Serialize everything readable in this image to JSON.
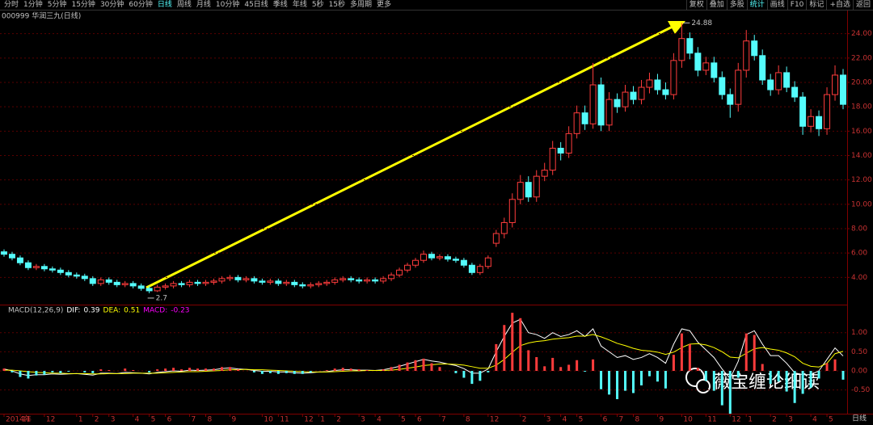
{
  "toolbar": {
    "left": [
      {
        "label": "分时"
      },
      {
        "label": "1分钟"
      },
      {
        "label": "5分钟"
      },
      {
        "label": "15分钟"
      },
      {
        "label": "30分钟"
      },
      {
        "label": "60分钟"
      },
      {
        "label": "日线",
        "active": true
      },
      {
        "label": "周线"
      },
      {
        "label": "月线"
      },
      {
        "label": "10分钟"
      },
      {
        "label": "45日线"
      },
      {
        "label": "季线"
      },
      {
        "label": "年线"
      },
      {
        "label": "5秒"
      },
      {
        "label": "15秒"
      },
      {
        "label": "多周期"
      },
      {
        "label": "更多"
      }
    ],
    "right": [
      {
        "label": "复权"
      },
      {
        "label": "叠加"
      },
      {
        "label": "多股"
      },
      {
        "label": "统计",
        "active": true
      },
      {
        "label": "画线"
      },
      {
        "label": "F10"
      },
      {
        "label": "标记"
      },
      {
        "label": "+自选"
      },
      {
        "label": "返回"
      }
    ]
  },
  "chart_data": {
    "type": "candlestick",
    "title": "000999 华润三九(日线)",
    "period_label": "日线",
    "categories": [
      "2014年",
      null,
      "11",
      null,
      null,
      "12",
      null,
      null,
      null,
      "1",
      null,
      "2",
      null,
      "3",
      null,
      null,
      "4",
      null,
      "5",
      null,
      "6",
      null,
      null,
      "7",
      null,
      "8",
      null,
      null,
      "9",
      null,
      null,
      null,
      "10",
      null,
      "11",
      null,
      null,
      "12",
      null,
      "1",
      null,
      "2",
      null,
      null,
      "3",
      null,
      "4",
      null,
      null,
      "5",
      null,
      "6",
      null,
      null,
      "7",
      null,
      null,
      "8",
      null,
      null,
      "12",
      null,
      null,
      null,
      "2",
      null,
      null,
      "3",
      null,
      "4",
      null,
      "5",
      null,
      null,
      "6",
      null,
      "7",
      null,
      "8",
      null,
      null,
      "9",
      null,
      null,
      "10",
      null,
      null,
      "11",
      null,
      null,
      "12",
      null,
      "1",
      null,
      null,
      "2",
      null,
      "3",
      null,
      null,
      "4",
      null,
      "5",
      null,
      null
    ],
    "open": [
      6.1,
      5.9,
      5.6,
      5.2,
      4.8,
      4.9,
      4.7,
      4.6,
      4.4,
      4.2,
      4.1,
      3.9,
      3.5,
      3.8,
      3.6,
      3.4,
      3.5,
      3.3,
      3.1,
      2.9,
      3.2,
      3.3,
      3.5,
      3.4,
      3.6,
      3.5,
      3.6,
      3.7,
      3.9,
      4.0,
      3.8,
      3.9,
      3.7,
      3.6,
      3.7,
      3.5,
      3.6,
      3.4,
      3.3,
      3.4,
      3.5,
      3.6,
      3.8,
      3.9,
      3.8,
      3.7,
      3.8,
      3.7,
      3.9,
      4.2,
      4.6,
      5.0,
      5.4,
      5.9,
      5.6,
      5.7,
      5.5,
      5.4,
      5.0,
      4.4,
      4.9,
      6.8,
      7.6,
      8.5,
      10.4,
      11.8,
      10.6,
      12.3,
      12.8,
      14.6,
      14.2,
      15.8,
      17.5,
      16.6,
      19.8,
      16.5,
      18.6,
      18.0,
      19.2,
      18.6,
      19.6,
      20.2,
      19.4,
      19.0,
      21.8,
      23.6,
      22.4,
      21.0,
      21.6,
      20.4,
      19.0,
      18.2,
      21.0,
      23.4,
      22.2,
      20.2,
      19.4,
      20.8,
      19.6,
      18.8,
      16.4,
      17.2,
      16.2,
      19.0,
      20.6
    ],
    "high": [
      6.3,
      6.1,
      5.8,
      5.4,
      5.1,
      5.1,
      4.9,
      4.8,
      4.6,
      4.4,
      4.3,
      4.1,
      4.0,
      4.0,
      3.8,
      3.7,
      3.7,
      3.5,
      3.3,
      3.4,
      3.5,
      3.7,
      3.7,
      3.8,
      3.8,
      3.8,
      3.9,
      4.1,
      4.2,
      4.2,
      4.1,
      4.1,
      3.9,
      3.9,
      3.9,
      3.8,
      3.8,
      3.6,
      3.6,
      3.7,
      3.8,
      4.0,
      4.1,
      4.1,
      4.0,
      4.0,
      4.0,
      4.1,
      4.4,
      4.8,
      5.2,
      5.6,
      6.2,
      6.1,
      5.9,
      5.9,
      5.7,
      5.6,
      5.2,
      5.1,
      5.8,
      7.9,
      8.9,
      10.9,
      12.4,
      12.3,
      12.8,
      13.4,
      15.2,
      15.1,
      16.4,
      18.1,
      18.1,
      21.6,
      20.4,
      19.2,
      19.1,
      19.8,
      19.7,
      20.2,
      20.8,
      20.7,
      20.0,
      22.4,
      24.88,
      24.1,
      22.9,
      22.1,
      22.1,
      20.9,
      19.5,
      21.6,
      24.3,
      23.9,
      22.7,
      20.7,
      21.4,
      21.3,
      20.1,
      19.2,
      17.8,
      17.7,
      19.6,
      21.4,
      21.1
    ],
    "low": [
      5.7,
      5.4,
      5.0,
      4.6,
      4.6,
      4.5,
      4.4,
      4.2,
      4.0,
      3.9,
      3.7,
      3.3,
      3.3,
      3.4,
      3.2,
      3.2,
      3.1,
      2.9,
      2.7,
      2.8,
      3.0,
      3.1,
      3.2,
      3.2,
      3.3,
      3.3,
      3.4,
      3.5,
      3.7,
      3.6,
      3.6,
      3.5,
      3.4,
      3.4,
      3.3,
      3.3,
      3.2,
      3.1,
      3.1,
      3.2,
      3.3,
      3.4,
      3.6,
      3.6,
      3.5,
      3.5,
      3.5,
      3.5,
      3.7,
      4.0,
      4.4,
      4.8,
      5.2,
      5.4,
      5.4,
      5.3,
      5.2,
      4.8,
      4.2,
      4.2,
      4.7,
      6.5,
      7.2,
      8.1,
      10.0,
      10.2,
      10.2,
      11.9,
      12.4,
      13.6,
      13.8,
      15.4,
      16.1,
      16.2,
      16.0,
      16.0,
      17.5,
      17.6,
      18.2,
      18.2,
      19.1,
      19.0,
      18.6,
      18.6,
      21.2,
      21.9,
      20.5,
      20.6,
      20.0,
      18.6,
      17.1,
      17.6,
      20.4,
      21.8,
      19.8,
      18.9,
      19.0,
      19.2,
      18.4,
      15.7,
      15.9,
      15.6,
      15.7,
      18.5,
      17.8
    ],
    "close": [
      5.9,
      5.6,
      5.2,
      4.8,
      4.9,
      4.7,
      4.6,
      4.4,
      4.2,
      4.1,
      3.9,
      3.5,
      3.8,
      3.6,
      3.4,
      3.5,
      3.3,
      3.1,
      2.9,
      3.2,
      3.3,
      3.5,
      3.4,
      3.6,
      3.5,
      3.6,
      3.7,
      3.9,
      4.0,
      3.8,
      3.9,
      3.7,
      3.6,
      3.7,
      3.5,
      3.6,
      3.4,
      3.3,
      3.4,
      3.5,
      3.6,
      3.8,
      3.9,
      3.8,
      3.7,
      3.8,
      3.7,
      3.9,
      4.2,
      4.6,
      5.0,
      5.4,
      5.9,
      5.6,
      5.7,
      5.5,
      5.4,
      5.0,
      4.4,
      4.9,
      5.6,
      7.6,
      8.5,
      10.4,
      11.8,
      10.6,
      12.3,
      12.8,
      14.6,
      14.2,
      15.8,
      17.5,
      16.6,
      19.8,
      16.5,
      18.6,
      18.0,
      19.2,
      18.6,
      19.6,
      20.2,
      19.4,
      19.0,
      21.8,
      23.6,
      22.4,
      21.0,
      21.6,
      20.4,
      19.0,
      18.2,
      21.0,
      23.4,
      22.2,
      20.2,
      19.4,
      20.8,
      19.6,
      18.8,
      16.4,
      17.2,
      16.2,
      19.0,
      20.6,
      18.2
    ],
    "up_color": "#ff3c3c",
    "down_color": "#54fcfc",
    "ylim": [
      1.9,
      25.9
    ],
    "yticks": [
      {
        "value": 4,
        "label": "4.00"
      },
      {
        "value": 6,
        "label": "6.00"
      },
      {
        "value": 8,
        "label": "8.00"
      },
      {
        "value": 10,
        "label": "10.00"
      },
      {
        "value": 12,
        "label": "12.00"
      },
      {
        "value": 14,
        "label": "14.00"
      },
      {
        "value": 16,
        "label": "16.00"
      },
      {
        "value": 18,
        "label": "18.00"
      },
      {
        "value": 20,
        "label": "20.00"
      },
      {
        "value": 22,
        "label": "22.00"
      },
      {
        "value": 24,
        "label": "24.00"
      }
    ],
    "grid": true,
    "macd": {
      "title": "MACD(12,26,9)",
      "ylim": [
        -1.12,
        1.67
      ],
      "yticks": [
        {
          "value": 1,
          "label": "1.00"
        },
        {
          "value": 0.5,
          "label": "0.50"
        },
        {
          "value": 0,
          "label": "0.00"
        },
        {
          "value": -0.5,
          "label": "-0.50"
        }
      ],
      "series": [
        {
          "name": "DIF:",
          "color": "#ffffff",
          "values": [
            0.05,
            0.0,
            -0.08,
            -0.12,
            -0.1,
            -0.1,
            -0.08,
            -0.09,
            -0.08,
            -0.07,
            -0.09,
            -0.11,
            -0.06,
            -0.06,
            -0.07,
            -0.04,
            -0.05,
            -0.06,
            -0.08,
            -0.04,
            -0.02,
            0.0,
            -0.01,
            0.02,
            0.01,
            0.02,
            0.03,
            0.06,
            0.08,
            0.05,
            0.04,
            0.01,
            -0.01,
            -0.01,
            -0.03,
            -0.03,
            -0.05,
            -0.06,
            -0.05,
            -0.03,
            -0.02,
            0.01,
            0.03,
            0.03,
            0.02,
            0.02,
            0.01,
            0.03,
            0.07,
            0.12,
            0.18,
            0.24,
            0.3,
            0.26,
            0.23,
            0.18,
            0.14,
            0.06,
            -0.06,
            -0.06,
            0.05,
            0.5,
            0.9,
            1.25,
            1.35,
            1.0,
            0.95,
            0.85,
            1.0,
            0.9,
            0.95,
            1.05,
            0.9,
            1.1,
            0.65,
            0.5,
            0.35,
            0.4,
            0.3,
            0.35,
            0.45,
            0.35,
            0.2,
            0.7,
            1.1,
            1.05,
            0.75,
            0.55,
            0.35,
            0.05,
            -0.2,
            0.25,
            0.95,
            1.05,
            0.7,
            0.4,
            0.4,
            0.2,
            -0.05,
            -0.1,
            -0.1,
            0.0,
            0.3,
            0.6,
            0.39
          ]
        },
        {
          "name": "DEA:",
          "color": "#ffff00",
          "values": [
            0.02,
            0.02,
            0.0,
            -0.02,
            -0.04,
            -0.05,
            -0.06,
            -0.06,
            -0.07,
            -0.07,
            -0.07,
            -0.08,
            -0.08,
            -0.07,
            -0.07,
            -0.07,
            -0.06,
            -0.06,
            -0.06,
            -0.06,
            -0.05,
            -0.04,
            -0.03,
            -0.02,
            -0.02,
            -0.01,
            0.0,
            0.01,
            0.03,
            0.03,
            0.04,
            0.03,
            0.03,
            0.02,
            0.01,
            0.0,
            -0.01,
            -0.02,
            -0.03,
            -0.03,
            -0.03,
            -0.02,
            -0.01,
            0.0,
            0.0,
            0.01,
            0.01,
            0.01,
            0.02,
            0.04,
            0.07,
            0.1,
            0.14,
            0.16,
            0.18,
            0.18,
            0.17,
            0.15,
            0.11,
            0.07,
            0.07,
            0.15,
            0.3,
            0.49,
            0.66,
            0.73,
            0.77,
            0.79,
            0.83,
            0.85,
            0.87,
            0.91,
            0.91,
            0.95,
            0.89,
            0.81,
            0.72,
            0.66,
            0.59,
            0.54,
            0.52,
            0.49,
            0.43,
            0.49,
            0.61,
            0.7,
            0.71,
            0.68,
            0.61,
            0.5,
            0.36,
            0.34,
            0.46,
            0.58,
            0.61,
            0.57,
            0.54,
            0.47,
            0.37,
            0.2,
            0.12,
            0.1,
            0.2,
            0.45,
            0.51
          ]
        },
        {
          "name": "MACD:",
          "color": "#ff00ff",
          "up_color": "#ff3c3c",
          "down_color": "#54fcfc",
          "values": [
            0.06,
            -0.04,
            -0.16,
            -0.2,
            -0.12,
            -0.1,
            -0.04,
            -0.06,
            -0.02,
            0.0,
            -0.04,
            -0.06,
            0.04,
            0.02,
            0.0,
            0.06,
            0.02,
            0.0,
            -0.04,
            0.04,
            0.06,
            0.08,
            0.04,
            0.08,
            0.06,
            0.06,
            0.06,
            0.1,
            0.1,
            0.04,
            0.0,
            -0.04,
            -0.08,
            -0.06,
            -0.08,
            -0.06,
            -0.08,
            -0.08,
            -0.04,
            0.0,
            0.02,
            0.06,
            0.08,
            0.06,
            0.04,
            0.02,
            0.0,
            0.04,
            0.1,
            0.16,
            0.22,
            0.28,
            0.32,
            0.2,
            0.1,
            0.0,
            -0.06,
            -0.18,
            -0.34,
            -0.26,
            -0.04,
            0.7,
            1.2,
            1.52,
            1.38,
            0.54,
            0.36,
            0.12,
            0.34,
            0.1,
            0.16,
            0.28,
            -0.02,
            0.3,
            -0.48,
            -0.62,
            -0.74,
            -0.52,
            -0.58,
            -0.38,
            -0.14,
            -0.28,
            -0.46,
            0.42,
            0.98,
            0.7,
            0.08,
            -0.26,
            -0.52,
            -0.9,
            -1.12,
            -0.18,
            0.98,
            0.94,
            0.18,
            -0.34,
            -0.28,
            -0.54,
            -0.84,
            -0.6,
            -0.44,
            -0.2,
            0.2,
            0.3,
            -0.23
          ]
        }
      ]
    }
  },
  "watermark": "薇宝缠论细读"
}
